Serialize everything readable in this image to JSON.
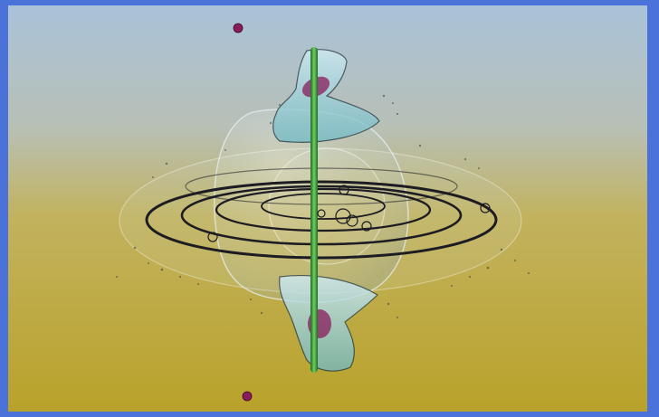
{
  "frame": {
    "border_color": "#4a72d8"
  },
  "photo": {
    "subject": "water-drop-collision",
    "background_top_color": "#a9c2d8",
    "background_bottom_color": "#b9a22a",
    "stem_color": "#3f9a3a",
    "drop_color": "#8a1b5c",
    "ring_color": "#1c1c22",
    "bubble_color": "#cfe6f0"
  }
}
